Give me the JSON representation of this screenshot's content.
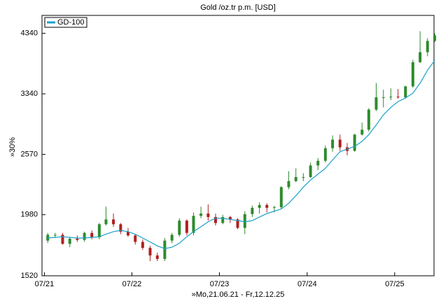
{
  "chart_data": {
    "type": "candlestick",
    "title": "Gold /oz.tr p.m. [USD]",
    "y_label": "»30%",
    "x_label": "»Mo,21.06.21 - Fr,12.12.25",
    "log_y": true,
    "up_color": "#2e8b2e",
    "down_color": "#b02020",
    "x": [
      "2021-07",
      "2021-08",
      "2021-09",
      "2021-10",
      "2021-11",
      "2021-12",
      "2022-01",
      "2022-02",
      "2022-03",
      "2022-04",
      "2022-05",
      "2022-06",
      "2022-07",
      "2022-08",
      "2022-09",
      "2022-10",
      "2022-11",
      "2022-12",
      "2023-01",
      "2023-02",
      "2023-03",
      "2023-04",
      "2023-05",
      "2023-06",
      "2023-07",
      "2023-08",
      "2023-09",
      "2023-10",
      "2023-11",
      "2023-12",
      "2024-01",
      "2024-02",
      "2024-03",
      "2024-04",
      "2024-05",
      "2024-06",
      "2024-07",
      "2024-08",
      "2024-09",
      "2024-10",
      "2024-11",
      "2024-12",
      "2025-01",
      "2025-02",
      "2025-03",
      "2025-04",
      "2025-05",
      "2025-06",
      "2025-07",
      "2025-08",
      "2025-09",
      "2025-10",
      "2025-11",
      "2025-12"
    ],
    "open": [
      1770,
      1815,
      1815,
      1745,
      1785,
      1775,
      1830,
      1795,
      1900,
      1940,
      1900,
      1840,
      1810,
      1760,
      1715,
      1660,
      1635,
      1770,
      1815,
      1930,
      1830,
      1970,
      1990,
      1960,
      1910,
      1960,
      1940,
      1870,
      1985,
      2040,
      2065,
      2040,
      2045,
      2230,
      2290,
      2330,
      2330,
      2450,
      2500,
      2640,
      2740,
      2650,
      2610,
      2800,
      2860,
      3120,
      3290,
      3290,
      3300,
      3290,
      3450,
      3830,
      4000,
      4200
    ],
    "high": [
      1830,
      1830,
      1830,
      1800,
      1810,
      1840,
      1850,
      1910,
      2050,
      1990,
      1910,
      1870,
      1820,
      1780,
      1730,
      1680,
      1790,
      1830,
      1950,
      1940,
      2000,
      2050,
      2070,
      1990,
      1980,
      1970,
      1950,
      2010,
      2060,
      2090,
      2080,
      2060,
      2240,
      2390,
      2420,
      2370,
      2480,
      2530,
      2670,
      2790,
      2800,
      2700,
      2810,
      2950,
      3140,
      3500,
      3400,
      3420,
      3410,
      3460,
      3870,
      4380,
      4250,
      4340
    ],
    "low": [
      1750,
      1790,
      1740,
      1720,
      1760,
      1760,
      1780,
      1780,
      1890,
      1880,
      1820,
      1800,
      1740,
      1700,
      1620,
      1620,
      1620,
      1750,
      1800,
      1810,
      1810,
      1950,
      1930,
      1890,
      1900,
      1910,
      1860,
      1820,
      1960,
      1990,
      2000,
      2000,
      2030,
      2210,
      2280,
      2290,
      2320,
      2400,
      2480,
      2600,
      2610,
      2560,
      2600,
      2790,
      2840,
      3100,
      3150,
      3250,
      3270,
      3270,
      3430,
      3820,
      3930,
      4180
    ],
    "close": [
      1815,
      1815,
      1745,
      1785,
      1775,
      1830,
      1795,
      1900,
      1940,
      1900,
      1840,
      1810,
      1760,
      1715,
      1660,
      1635,
      1770,
      1815,
      1930,
      1830,
      1970,
      1990,
      1960,
      1910,
      1960,
      1940,
      1870,
      1985,
      2040,
      2065,
      2040,
      2045,
      2230,
      2290,
      2330,
      2330,
      2450,
      2500,
      2640,
      2740,
      2650,
      2610,
      2800,
      2860,
      3120,
      3290,
      3290,
      3300,
      3290,
      3450,
      3830,
      4000,
      4200,
      4300
    ],
    "series": [
      {
        "name": "GD-100",
        "color": "#1ba1c9",
        "values": [
          1790,
          1795,
          1800,
          1795,
          1790,
          1790,
          1795,
          1800,
          1820,
          1840,
          1850,
          1840,
          1820,
          1790,
          1760,
          1730,
          1710,
          1720,
          1750,
          1800,
          1840,
          1880,
          1920,
          1950,
          1950,
          1940,
          1930,
          1920,
          1930,
          1960,
          1990,
          2010,
          2030,
          2080,
          2150,
          2230,
          2300,
          2360,
          2420,
          2510,
          2600,
          2630,
          2660,
          2720,
          2800,
          2920,
          3050,
          3150,
          3230,
          3280,
          3350,
          3500,
          3700,
          3860
        ]
      }
    ],
    "xlim": [
      "2021-06-21",
      "2025-12-12"
    ],
    "xticks": [
      {
        "value": "2021-07-01",
        "label": "07/21"
      },
      {
        "value": "2022-07-01",
        "label": "07/22"
      },
      {
        "value": "2023-07-01",
        "label": "07/23"
      },
      {
        "value": "2024-07-01",
        "label": "07/24"
      },
      {
        "value": "2025-07-01",
        "label": "07/25"
      }
    ],
    "ylim": [
      1520,
      4690
    ],
    "yticks": [
      1520,
      1980,
      2570,
      3340,
      4340
    ],
    "legend": "top-left"
  }
}
